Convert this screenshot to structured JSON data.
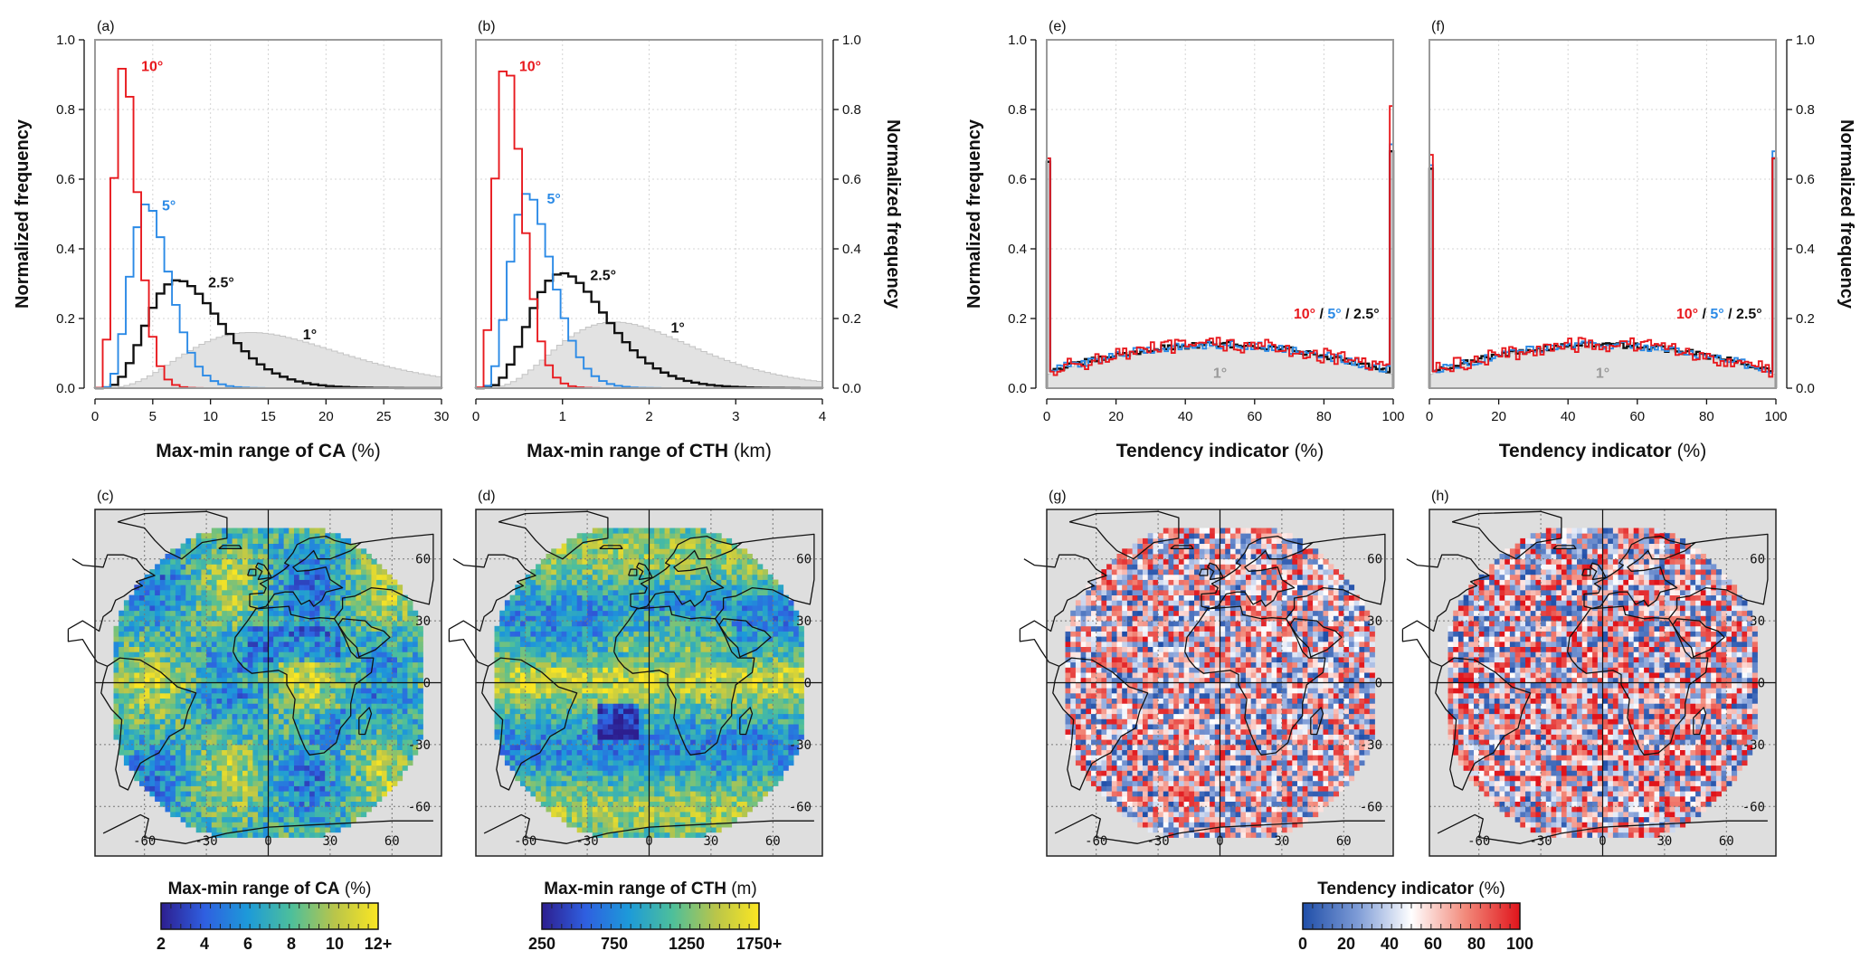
{
  "figure": {
    "colors": {
      "deg10": "#e8191e",
      "deg5": "#2b8ae6",
      "deg2_5": "#111111",
      "deg1_fill": "#e2e2e2",
      "deg1_stroke": "#c4c4c4",
      "map_bg": "#dedede"
    }
  },
  "chart_data": [
    {
      "id": "a",
      "panel_label": "(a)",
      "type": "line",
      "xlabel_main": "Max-min range of CA",
      "xlabel_unit": "(%)",
      "ylabel": "Normalized frequency",
      "ylabel_side": "left",
      "xlim": [
        0,
        30
      ],
      "ylim": [
        0,
        1.0
      ],
      "xticks": [
        "0",
        "5",
        "10",
        "15",
        "20",
        "25",
        "30"
      ],
      "yticks": [
        "0.0",
        "0.2",
        "0.4",
        "0.6",
        "0.8",
        "1.0"
      ],
      "grid": true,
      "series": [
        {
          "name": "1°",
          "label_text": "1°",
          "color": "#999999",
          "fill": true,
          "dist": {
            "kind": "gamma",
            "peak_x": 13.5,
            "peak_y": 0.16,
            "shape": 4.8,
            "xmin": 0,
            "xmax": 30
          }
        },
        {
          "name": "2.5°",
          "label_text": "2.5°",
          "color": "#111111",
          "dist": {
            "kind": "gamma",
            "peak_x": 7.2,
            "peak_y": 0.31,
            "shape": 6,
            "xmin": 0,
            "xmax": 30
          }
        },
        {
          "name": "5°",
          "label_text": "5°",
          "color": "#2b8ae6",
          "dist": {
            "kind": "gamma",
            "peak_x": 4.5,
            "peak_y": 0.53,
            "shape": 8,
            "xmin": 0,
            "xmax": 30
          }
        },
        {
          "name": "10°",
          "label_text": "10°",
          "color": "#e8191e",
          "dist": {
            "kind": "gamma",
            "peak_x": 2.5,
            "peak_y": 0.93,
            "shape": 7,
            "xmin": 0,
            "xmax": 30
          }
        }
      ],
      "annotations": [
        {
          "text": "10°",
          "color": "#e8191e",
          "x": 4,
          "y": 0.91
        },
        {
          "text": "5°",
          "color": "#2b8ae6",
          "x": 5.8,
          "y": 0.51
        },
        {
          "text": "2.5°",
          "color": "#111111",
          "x": 9.8,
          "y": 0.29
        },
        {
          "text": "1°",
          "color": "#111111",
          "x": 18,
          "y": 0.14
        }
      ]
    },
    {
      "id": "b",
      "panel_label": "(b)",
      "type": "line",
      "xlabel_main": "Max-min range of CTH",
      "xlabel_unit": "(km)",
      "ylabel": "Normalized frequency",
      "ylabel_side": "right",
      "xlim": [
        0,
        4
      ],
      "ylim": [
        0,
        1.0
      ],
      "xticks": [
        "0",
        "1",
        "2",
        "3",
        "4"
      ],
      "yticks": [
        "0.0",
        "0.2",
        "0.4",
        "0.6",
        "0.8",
        "1.0"
      ],
      "grid": true,
      "series": [
        {
          "name": "1°",
          "label_text": "1°",
          "color": "#999999",
          "fill": true,
          "dist": {
            "kind": "gamma",
            "peak_x": 1.6,
            "peak_y": 0.19,
            "shape": 5,
            "xmin": 0,
            "xmax": 4
          }
        },
        {
          "name": "2.5°",
          "label_text": "2.5°",
          "color": "#111111",
          "dist": {
            "kind": "gamma",
            "peak_x": 1.0,
            "peak_y": 0.33,
            "shape": 6,
            "xmin": 0,
            "xmax": 4
          }
        },
        {
          "name": "5°",
          "label_text": "5°",
          "color": "#2b8ae6",
          "dist": {
            "kind": "gamma",
            "peak_x": 0.6,
            "peak_y": 0.56,
            "shape": 7,
            "xmin": 0,
            "xmax": 4
          }
        },
        {
          "name": "10°",
          "label_text": "10°",
          "color": "#e8191e",
          "dist": {
            "kind": "gamma",
            "peak_x": 0.35,
            "peak_y": 0.94,
            "shape": 6,
            "xmin": 0,
            "xmax": 4
          }
        }
      ],
      "annotations": [
        {
          "text": "10°",
          "color": "#e8191e",
          "x": 0.5,
          "y": 0.91
        },
        {
          "text": "5°",
          "color": "#2b8ae6",
          "x": 0.82,
          "y": 0.53
        },
        {
          "text": "2.5°",
          "color": "#111111",
          "x": 1.32,
          "y": 0.31
        },
        {
          "text": "1°",
          "color": "#111111",
          "x": 2.25,
          "y": 0.16
        }
      ]
    },
    {
      "id": "e",
      "panel_label": "(e)",
      "type": "line",
      "xlabel_main": "Tendency indicator",
      "xlabel_unit": "(%)",
      "ylabel": "Normalized frequency",
      "ylabel_side": "left",
      "xlim": [
        0,
        100
      ],
      "ylim": [
        0,
        1.0
      ],
      "xticks": [
        "0",
        "20",
        "40",
        "60",
        "80",
        "100"
      ],
      "yticks": [
        "0.0",
        "0.2",
        "0.4",
        "0.6",
        "0.8",
        "1.0"
      ],
      "grid": true,
      "series": [
        {
          "name": "1°",
          "label_text": "1°",
          "color": "#999999",
          "fill": true,
          "dist": {
            "kind": "tendency",
            "edge_left": 0.04,
            "edge_right": 0.04,
            "base": 0.05,
            "peak": 0.12,
            "noise": 0.005
          }
        },
        {
          "name": "2.5°",
          "label_text": "2.5°",
          "color": "#111111",
          "dist": {
            "kind": "tendency",
            "edge_left": 0.65,
            "edge_right": 0.68,
            "base": 0.05,
            "peak": 0.125,
            "noise": 0.008
          }
        },
        {
          "name": "5°",
          "label_text": "5°",
          "color": "#2b8ae6",
          "dist": {
            "kind": "tendency",
            "edge_left": 0.66,
            "edge_right": 0.7,
            "base": 0.05,
            "peak": 0.125,
            "noise": 0.012
          }
        },
        {
          "name": "10°",
          "label_text": "10°",
          "color": "#e8191e",
          "dist": {
            "kind": "tendency",
            "edge_left": 0.66,
            "edge_right": 0.81,
            "base": 0.05,
            "peak": 0.125,
            "noise": 0.022
          }
        }
      ],
      "legend_parts": [
        {
          "text": "10°",
          "color": "#e8191e"
        },
        {
          "text": " / ",
          "color": "#111111"
        },
        {
          "text": "5°",
          "color": "#2b8ae6"
        },
        {
          "text": " / ",
          "color": "#111111"
        },
        {
          "text": "2.5°",
          "color": "#111111"
        }
      ],
      "legend_pos": {
        "x": 96,
        "y": 0.2
      },
      "one_deg_label": {
        "text": "1°",
        "x": 50,
        "y": 0.03
      }
    },
    {
      "id": "f",
      "panel_label": "(f)",
      "type": "line",
      "xlabel_main": "Tendency indicator",
      "xlabel_unit": "(%)",
      "ylabel": "Normalized frequency",
      "ylabel_side": "right",
      "xlim": [
        0,
        100
      ],
      "ylim": [
        0,
        1.0
      ],
      "xticks": [
        "0",
        "20",
        "40",
        "60",
        "80",
        "100"
      ],
      "yticks": [
        "0.0",
        "0.2",
        "0.4",
        "0.6",
        "0.8",
        "1.0"
      ],
      "grid": true,
      "series": [
        {
          "name": "1°",
          "label_text": "1°",
          "color": "#999999",
          "fill": true,
          "dist": {
            "kind": "tendency",
            "edge_left": 0.04,
            "edge_right": 0.04,
            "base": 0.05,
            "peak": 0.12,
            "noise": 0.005
          }
        },
        {
          "name": "2.5°",
          "label_text": "2.5°",
          "color": "#111111",
          "dist": {
            "kind": "tendency",
            "edge_left": 0.63,
            "edge_right": 0.66,
            "base": 0.05,
            "peak": 0.125,
            "noise": 0.008
          }
        },
        {
          "name": "5°",
          "label_text": "5°",
          "color": "#2b8ae6",
          "dist": {
            "kind": "tendency",
            "edge_left": 0.64,
            "edge_right": 0.68,
            "base": 0.05,
            "peak": 0.125,
            "noise": 0.012
          }
        },
        {
          "name": "10°",
          "label_text": "10°",
          "color": "#e8191e",
          "dist": {
            "kind": "tendency",
            "edge_left": 0.67,
            "edge_right": 0.66,
            "base": 0.05,
            "peak": 0.125,
            "noise": 0.022
          }
        }
      ],
      "legend_parts": [
        {
          "text": "10°",
          "color": "#e8191e"
        },
        {
          "text": " / ",
          "color": "#111111"
        },
        {
          "text": "5°",
          "color": "#2b8ae6"
        },
        {
          "text": " / ",
          "color": "#111111"
        },
        {
          "text": "2.5°",
          "color": "#111111"
        }
      ],
      "legend_pos": {
        "x": 96,
        "y": 0.2
      },
      "one_deg_label": {
        "text": "1°",
        "x": 50,
        "y": 0.03
      }
    },
    {
      "id": "c",
      "panel_label": "(c)",
      "type": "heatmap",
      "map": "disk",
      "field": "ca",
      "colormap": "viridis-like",
      "colorbar": {
        "title_main": "Max-min range of CA",
        "title_unit": "(%)",
        "ticks": [
          "2",
          "4",
          "6",
          "8",
          "10",
          "12+"
        ]
      },
      "lon_labels": [
        "-60",
        "-30",
        "0",
        "30",
        "60"
      ],
      "lat_labels": [
        "60",
        "30",
        "0",
        "-30",
        "-60"
      ]
    },
    {
      "id": "d",
      "panel_label": "(d)",
      "type": "heatmap",
      "map": "disk",
      "field": "cth",
      "colormap": "viridis-like",
      "colorbar": {
        "title_main": "Max-min range of CTH",
        "title_unit": "(m)",
        "ticks": [
          "250",
          "750",
          "1250",
          "1750+"
        ]
      },
      "lon_labels": [
        "-60",
        "-30",
        "0",
        "30",
        "60"
      ],
      "lat_labels": [
        "60",
        "30",
        "0",
        "-30",
        "-60"
      ]
    },
    {
      "id": "g",
      "panel_label": "(g)",
      "type": "heatmap",
      "map": "disk",
      "field": "tend",
      "colormap": "blue-white-red",
      "colorbar": {
        "title_main": "Tendency indicator",
        "title_unit": "(%)",
        "ticks": [
          "0",
          "20",
          "40",
          "60",
          "80",
          "100"
        ]
      },
      "lon_labels": [
        "-60",
        "-30",
        "0",
        "30",
        "60"
      ],
      "lat_labels": [
        "60",
        "30",
        "0",
        "-30",
        "-60"
      ]
    },
    {
      "id": "h",
      "panel_label": "(h)",
      "type": "heatmap",
      "map": "disk",
      "field": "tend2",
      "colormap": "blue-white-red",
      "lon_labels": [
        "-60",
        "-30",
        "0",
        "30",
        "60"
      ],
      "lat_labels": [
        "60",
        "30",
        "0",
        "-30",
        "-60"
      ]
    }
  ]
}
